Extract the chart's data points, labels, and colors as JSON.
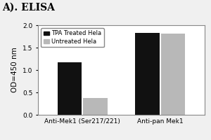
{
  "title": "A). ELISA",
  "ylabel": "OD=450 nm",
  "ylim": [
    0,
    2.0
  ],
  "yticks": [
    0.0,
    0.5,
    1.0,
    1.5,
    2.0
  ],
  "groups": [
    "Anti-Mek1 (Ser217/221)",
    "Anti-pan Mek1"
  ],
  "series": [
    {
      "label": "TPA Treated Hela",
      "color": "#111111",
      "values": [
        1.17,
        1.83
      ]
    },
    {
      "label": "Untreated Hela",
      "color": "#b8b8b8",
      "values": [
        0.37,
        1.81
      ]
    }
  ],
  "bar_width": 0.22,
  "group_centers": [
    0.35,
    1.05
  ],
  "background_color": "#f0f0f0",
  "plot_bg_color": "#ffffff",
  "legend_fontsize": 6.0,
  "axis_label_fontsize": 7.5,
  "tick_fontsize": 6.5,
  "title_fontsize": 10,
  "xlim": [
    -0.05,
    1.45
  ]
}
